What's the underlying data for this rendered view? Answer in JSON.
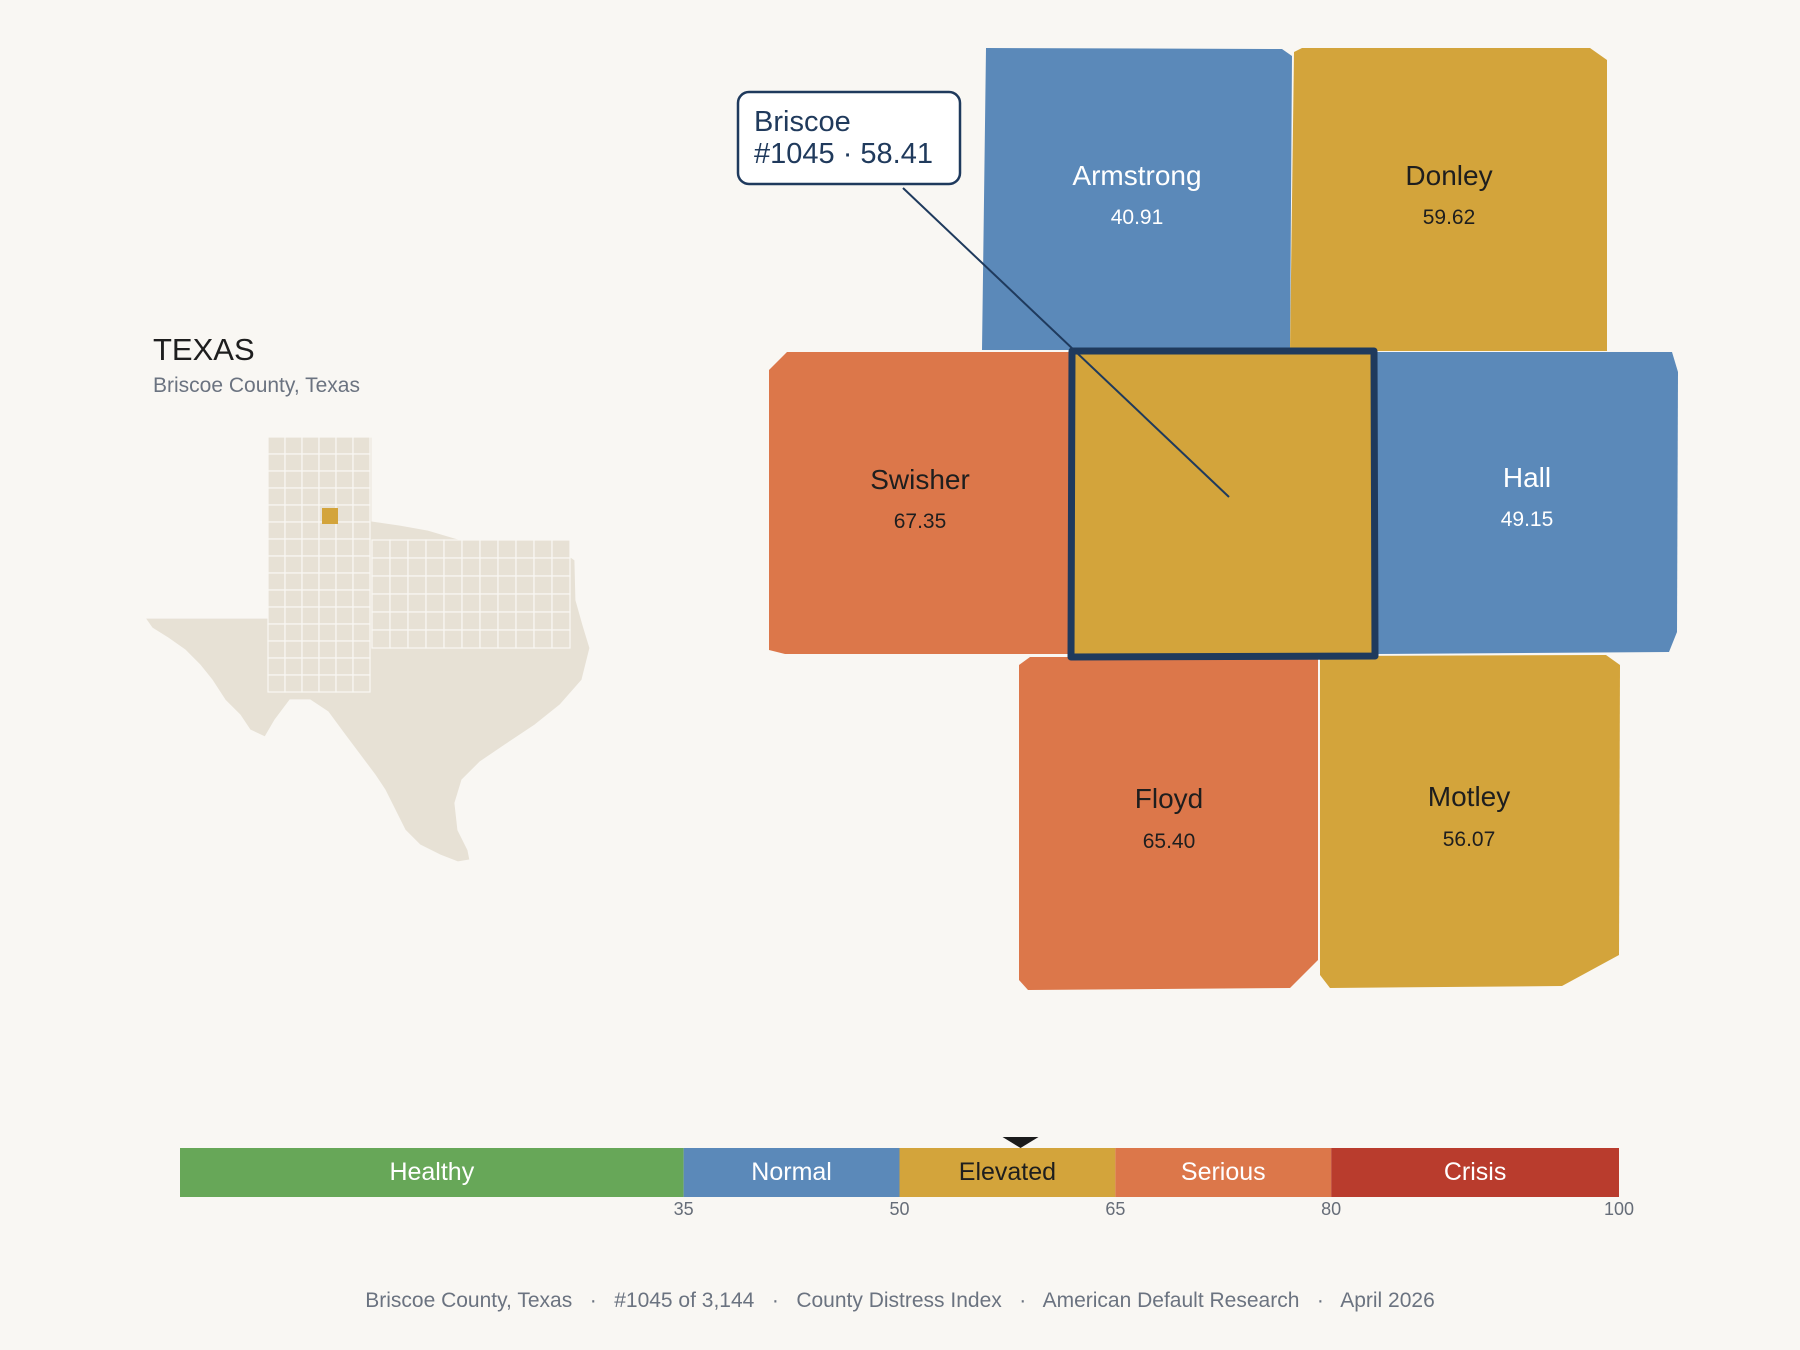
{
  "inset": {
    "state": "TEXAS",
    "subtitle": "Briscoe County, Texas"
  },
  "colors": {
    "background": "#f9f7f3",
    "healthy": "#67a758",
    "normal": "#5b89b9",
    "elevated": "#d3a43b",
    "serious": "#dc774a",
    "crisis": "#b93c2d",
    "outline": "#1f3a5d",
    "inset_fill": "#e7e1d5",
    "inset_highlight": "#d3a43b"
  },
  "focus": {
    "name": "Briscoe",
    "rank_value": "#1045 · 58.41",
    "category": "elevated"
  },
  "counties": [
    {
      "id": "armstrong",
      "name": "Armstrong",
      "value": "40.91",
      "category": "normal"
    },
    {
      "id": "donley",
      "name": "Donley",
      "value": "59.62",
      "category": "elevated"
    },
    {
      "id": "swisher",
      "name": "Swisher",
      "value": "67.35",
      "category": "serious"
    },
    {
      "id": "hall",
      "name": "Hall",
      "value": "49.15",
      "category": "normal"
    },
    {
      "id": "floyd",
      "name": "Floyd",
      "value": "65.40",
      "category": "serious"
    },
    {
      "id": "motley",
      "name": "Motley",
      "value": "56.07",
      "category": "elevated"
    }
  ],
  "scale": {
    "min": 0,
    "max": 100,
    "marker_value": 58.41,
    "bands": [
      {
        "label": "Healthy",
        "from": 0,
        "to": 35,
        "color": "#67a758"
      },
      {
        "label": "Normal",
        "from": 35,
        "to": 50,
        "color": "#5b89b9"
      },
      {
        "label": "Elevated",
        "from": 50,
        "to": 65,
        "color": "#d3a43b"
      },
      {
        "label": "Serious",
        "from": 65,
        "to": 80,
        "color": "#dc774a"
      },
      {
        "label": "Crisis",
        "from": 80,
        "to": 100,
        "color": "#b93c2d"
      }
    ],
    "ticks": [
      "35",
      "50",
      "65",
      "80",
      "100"
    ]
  },
  "footer": {
    "items": [
      "Briscoe County, Texas",
      "#1045 of 3,144",
      "County Distress Index",
      "American Default Research",
      "April 2026"
    ],
    "separator": "·"
  }
}
